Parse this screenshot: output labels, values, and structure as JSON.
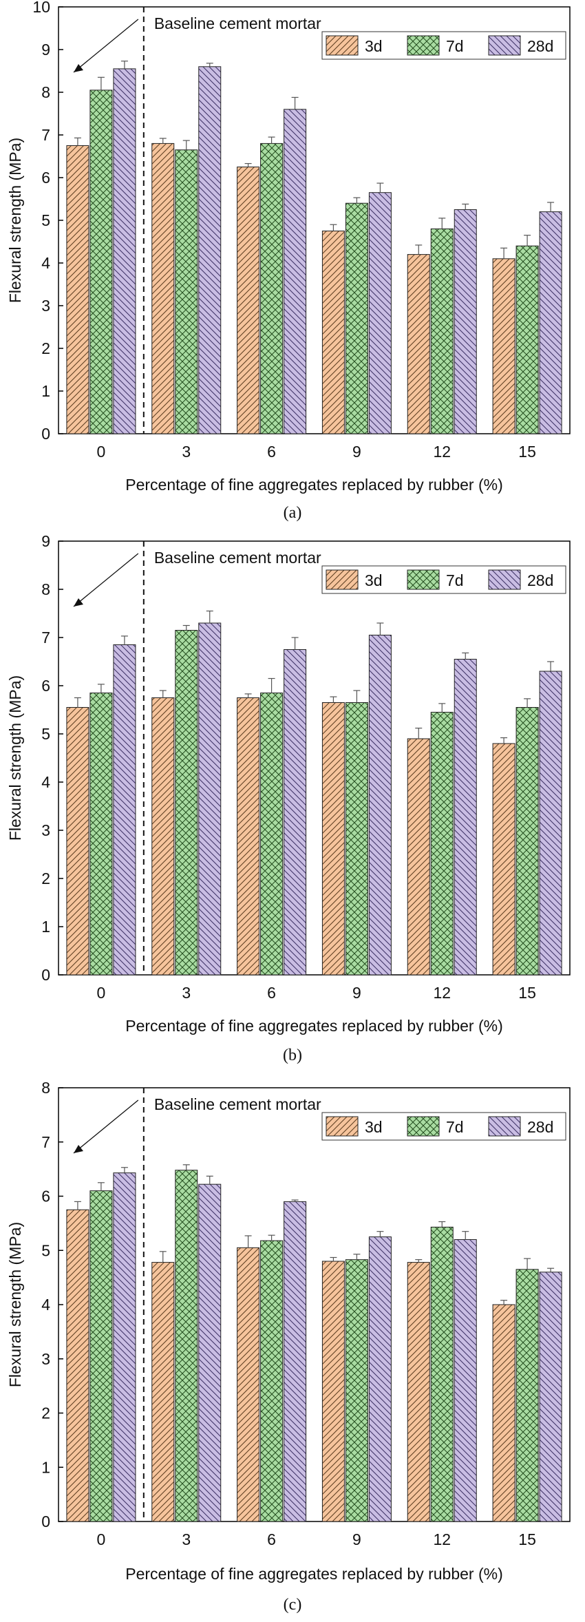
{
  "colors": {
    "d3": "#f6c49c",
    "d7": "#a9dca2",
    "d28": "#c9bde3",
    "axis": "#000000"
  },
  "chart_data": [
    {
      "type": "bar",
      "caption": "(a)",
      "ylabel": "Flexural strength (MPa)",
      "xlabel": "Percentage of fine aggregates replaced by rubber (%)",
      "annotation": "Baseline cement mortar",
      "categories": [
        "0",
        "3",
        "6",
        "9",
        "12",
        "15"
      ],
      "ylim": [
        0,
        10
      ],
      "yticks": [
        "0",
        "1",
        "2",
        "3",
        "4",
        "5",
        "6",
        "7",
        "8",
        "9",
        "10"
      ],
      "legend_position": "top-right",
      "series": [
        {
          "name": "3d",
          "values": [
            6.75,
            6.8,
            6.25,
            4.75,
            4.2,
            4.1
          ],
          "errors": [
            0.18,
            0.12,
            0.08,
            0.15,
            0.22,
            0.25
          ]
        },
        {
          "name": "7d",
          "values": [
            8.05,
            6.65,
            6.8,
            5.4,
            4.8,
            4.4
          ],
          "errors": [
            0.3,
            0.22,
            0.15,
            0.13,
            0.25,
            0.25
          ]
        },
        {
          "name": "28d",
          "values": [
            8.55,
            8.6,
            7.6,
            5.65,
            5.25,
            5.2
          ],
          "errors": [
            0.18,
            0.08,
            0.28,
            0.22,
            0.13,
            0.22
          ]
        }
      ]
    },
    {
      "type": "bar",
      "caption": "(b)",
      "ylabel": "Flexural strength (MPa)",
      "xlabel": "Percentage of fine aggregates replaced by rubber (%)",
      "annotation": "Baseline cement mortar",
      "categories": [
        "0",
        "3",
        "6",
        "9",
        "12",
        "15"
      ],
      "ylim": [
        0,
        9
      ],
      "yticks": [
        "0",
        "1",
        "2",
        "3",
        "4",
        "5",
        "6",
        "7",
        "8",
        "9"
      ],
      "legend_position": "top-right",
      "series": [
        {
          "name": "3d",
          "values": [
            5.55,
            5.75,
            5.75,
            5.65,
            4.9,
            4.8
          ],
          "errors": [
            0.2,
            0.15,
            0.08,
            0.12,
            0.22,
            0.12
          ]
        },
        {
          "name": "7d",
          "values": [
            5.85,
            7.15,
            5.85,
            5.65,
            5.45,
            5.55
          ],
          "errors": [
            0.18,
            0.1,
            0.3,
            0.25,
            0.18,
            0.18
          ]
        },
        {
          "name": "28d",
          "values": [
            6.85,
            7.3,
            6.75,
            7.05,
            6.55,
            6.3
          ],
          "errors": [
            0.18,
            0.25,
            0.25,
            0.25,
            0.13,
            0.2
          ]
        }
      ]
    },
    {
      "type": "bar",
      "caption": "(c)",
      "ylabel": "Flexural strength (MPa)",
      "xlabel": "Percentage of fine aggregates replaced by rubber (%)",
      "annotation": "Baseline cement mortar",
      "categories": [
        "0",
        "3",
        "6",
        "9",
        "12",
        "15"
      ],
      "ylim": [
        0,
        8
      ],
      "yticks": [
        "0",
        "1",
        "2",
        "3",
        "4",
        "5",
        "6",
        "7",
        "8"
      ],
      "legend_position": "top-right",
      "series": [
        {
          "name": "3d",
          "values": [
            5.75,
            4.78,
            5.05,
            4.8,
            4.78,
            4.0
          ],
          "errors": [
            0.15,
            0.2,
            0.22,
            0.07,
            0.05,
            0.08
          ]
        },
        {
          "name": "7d",
          "values": [
            6.1,
            6.48,
            5.18,
            4.83,
            5.43,
            4.65
          ],
          "errors": [
            0.15,
            0.1,
            0.1,
            0.1,
            0.1,
            0.2
          ]
        },
        {
          "name": "28d",
          "values": [
            6.43,
            6.22,
            5.9,
            5.25,
            5.2,
            4.6
          ],
          "errors": [
            0.1,
            0.15,
            0.03,
            0.1,
            0.15,
            0.07
          ]
        }
      ]
    }
  ]
}
